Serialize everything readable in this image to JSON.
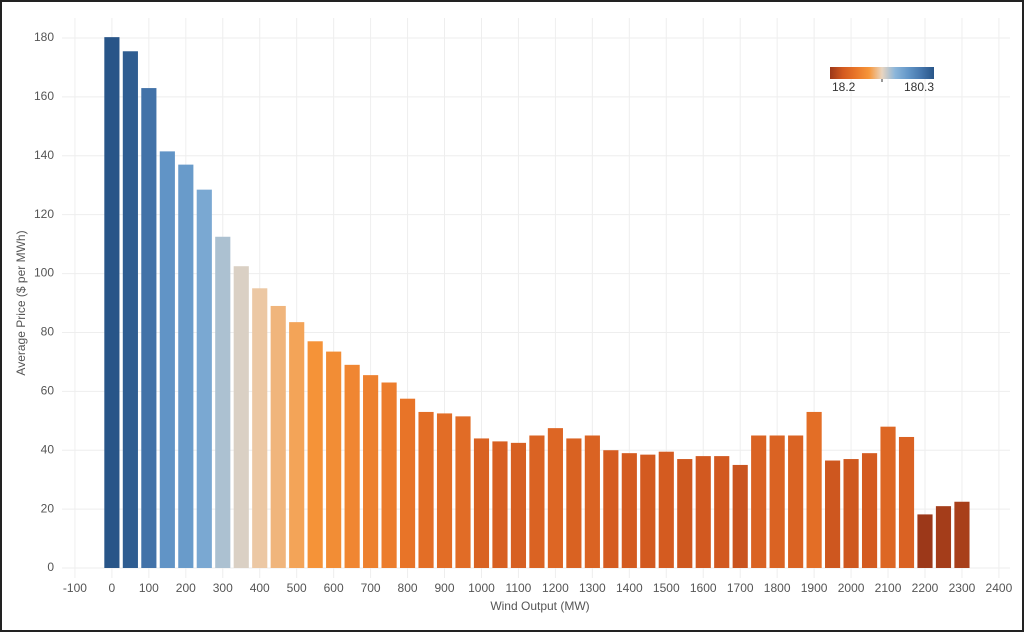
{
  "chart_data": {
    "type": "bar",
    "x_label": "Wind Output (MW)",
    "y_label": "Average Price ($ per MWh)",
    "x": [
      0,
      50,
      100,
      150,
      200,
      250,
      300,
      350,
      400,
      450,
      500,
      550,
      600,
      650,
      700,
      750,
      800,
      850,
      900,
      950,
      1000,
      1050,
      1100,
      1150,
      1200,
      1250,
      1300,
      1350,
      1400,
      1450,
      1500,
      1550,
      1600,
      1650,
      1700,
      1750,
      1800,
      1850,
      1900,
      1950,
      2000,
      2050,
      2100,
      2150,
      2200,
      2250,
      2300
    ],
    "values": [
      180.3,
      175.5,
      163,
      141.5,
      137,
      128.5,
      112.5,
      102.5,
      95,
      89,
      83.5,
      77,
      73.5,
      69,
      65.5,
      63,
      57.5,
      53,
      52.5,
      51.5,
      44,
      43,
      42.5,
      45,
      47.5,
      44,
      45,
      40,
      39,
      38.5,
      39.5,
      37,
      38,
      38,
      35,
      45,
      45,
      45,
      53,
      36.5,
      37,
      39,
      48,
      44.5,
      18.2,
      21,
      22.5
    ],
    "xlim": [
      -135,
      2430
    ],
    "xticks": [
      -100,
      0,
      100,
      200,
      300,
      400,
      500,
      600,
      700,
      800,
      900,
      1000,
      1100,
      1200,
      1300,
      1400,
      1500,
      1600,
      1700,
      1800,
      1900,
      2000,
      2100,
      2200,
      2300,
      2400
    ],
    "ylim": [
      -3.4,
      186.8
    ],
    "yticks": [
      0,
      20,
      40,
      60,
      80,
      100,
      120,
      140,
      160,
      180
    ],
    "grid": true,
    "color_scale": {
      "min": 18.2,
      "max": 180.3,
      "legend": "top-right",
      "colors": [
        "#9c3819",
        "#d35a20",
        "#e97629",
        "#f6963a",
        "#e9d5c0",
        "#8cb6da",
        "#6497c8",
        "#4677ad",
        "#285588"
      ]
    }
  }
}
